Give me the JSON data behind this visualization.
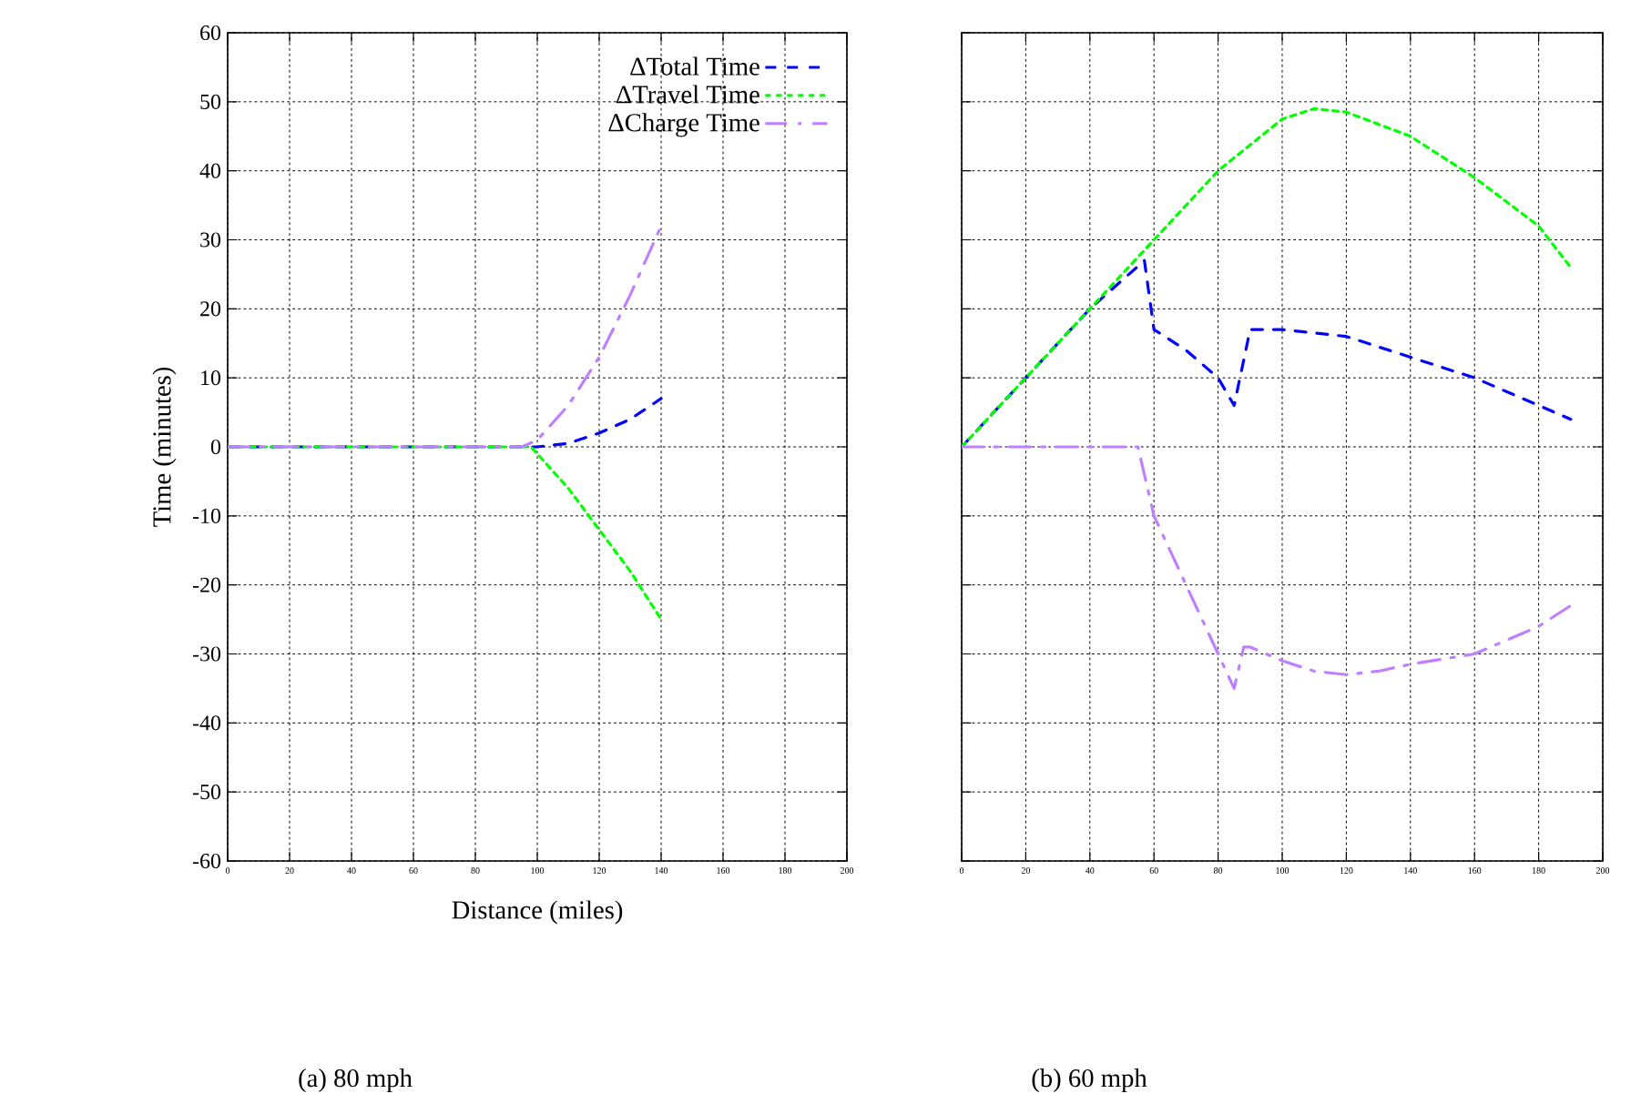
{
  "chart_data": [
    {
      "type": "line",
      "subtitle": "(a) 80 mph",
      "xlabel": "Distance (miles)",
      "ylabel": "Time (minutes)",
      "xlim": [
        0,
        200
      ],
      "ylim": [
        -60,
        60
      ],
      "xticks": [
        0,
        20,
        40,
        60,
        80,
        100,
        120,
        140,
        160,
        180,
        200
      ],
      "yticks": [
        -60,
        -50,
        -40,
        -30,
        -20,
        -10,
        0,
        10,
        20,
        30,
        40,
        50,
        60
      ],
      "grid": true,
      "legend": "top right",
      "series": [
        {
          "name": "ΔTotal Time",
          "color": "#0000ff",
          "line_style": "dashed",
          "x": [
            0,
            20,
            40,
            60,
            80,
            100,
            110,
            120,
            130,
            140
          ],
          "values": [
            0,
            0,
            0,
            0,
            0,
            0,
            0.5,
            2,
            4,
            7
          ]
        },
        {
          "name": "ΔTravel Time",
          "color": "#00ff00",
          "line_style": "dotted",
          "x": [
            0,
            20,
            40,
            60,
            80,
            98,
            100,
            110,
            120,
            130,
            140
          ],
          "values": [
            0,
            0,
            0,
            0,
            0,
            0,
            -1,
            -6,
            -12,
            -18,
            -25
          ]
        },
        {
          "name": "ΔCharge Time",
          "color": "#bf80ff",
          "line_style": "dashdot",
          "x": [
            0,
            20,
            40,
            60,
            80,
            95,
            100,
            110,
            120,
            130,
            140
          ],
          "values": [
            0,
            0,
            0,
            0,
            0,
            0,
            1,
            6,
            13,
            22,
            32
          ]
        }
      ]
    },
    {
      "type": "line",
      "subtitle": "(b) 60 mph",
      "xlim": [
        0,
        200
      ],
      "ylim": [
        -60,
        60
      ],
      "xticks": [
        0,
        20,
        40,
        60,
        80,
        100,
        120,
        140,
        160,
        180,
        200
      ],
      "yticks": [
        -60,
        -50,
        -40,
        -30,
        -20,
        -10,
        0,
        10,
        20,
        30,
        40,
        50,
        60
      ],
      "tick_labels": "x",
      "grid": true,
      "series": [
        {
          "color": "#0000ff",
          "line_style": "dashed",
          "x": [
            0,
            20,
            40,
            57,
            60,
            70,
            80,
            85,
            90,
            100,
            120,
            140,
            160,
            180,
            190
          ],
          "values": [
            0,
            10,
            20,
            27,
            17,
            14,
            10,
            6,
            17,
            17,
            16,
            13,
            10,
            6,
            4
          ]
        },
        {
          "color": "#00ff00",
          "line_style": "dotted",
          "x": [
            0,
            20,
            40,
            60,
            80,
            100,
            110,
            120,
            140,
            160,
            180,
            190
          ],
          "values": [
            0,
            10,
            20,
            30,
            40,
            47.5,
            49,
            48.5,
            45,
            39,
            32,
            26
          ]
        },
        {
          "color": "#bf80ff",
          "line_style": "dashdot",
          "x": [
            0,
            55,
            60,
            70,
            80,
            85,
            88,
            90,
            100,
            110,
            120,
            130,
            140,
            160,
            180,
            190
          ],
          "values": [
            0,
            0,
            -10,
            -20,
            -30,
            -35,
            -29,
            -29,
            -31,
            -32.5,
            -33,
            -32.5,
            -31.5,
            -30,
            -26,
            -23
          ]
        }
      ]
    }
  ]
}
